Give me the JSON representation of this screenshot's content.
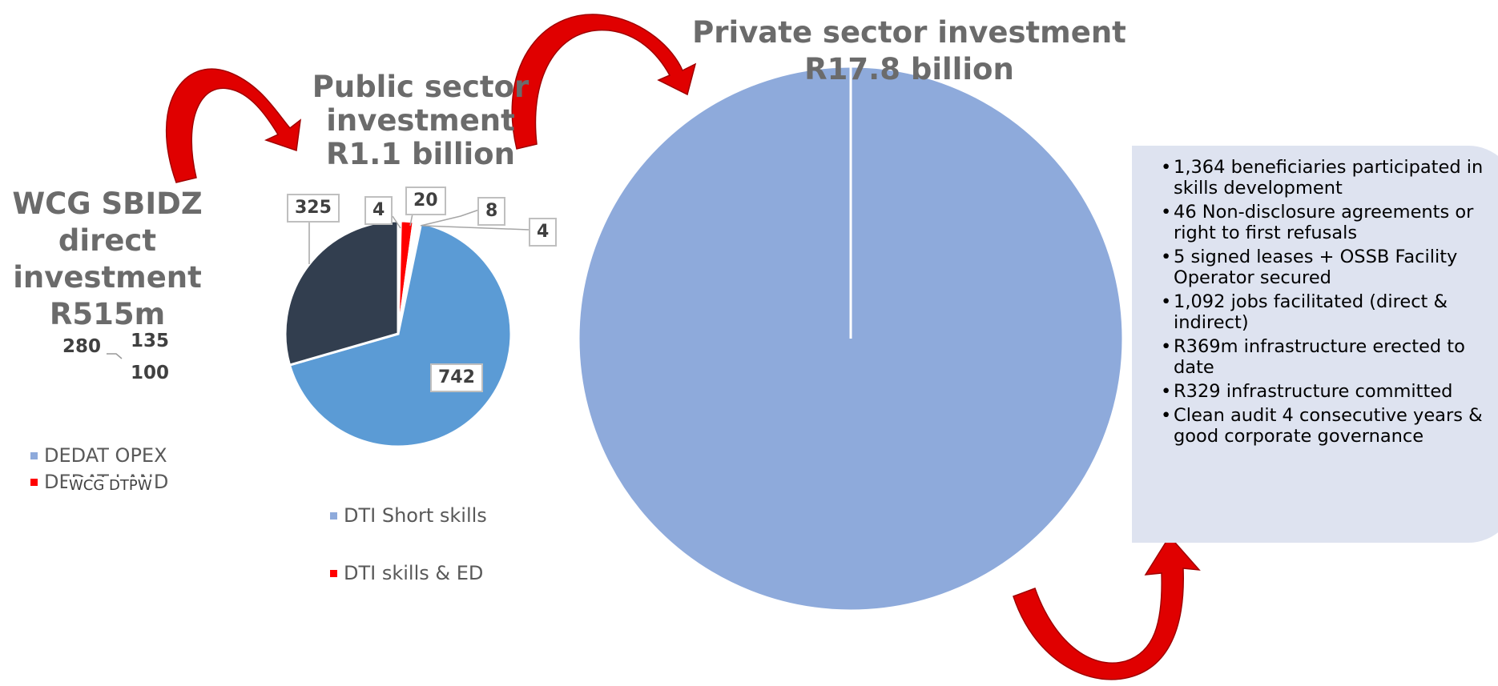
{
  "colors": {
    "light_blue": "#8eaadb",
    "mid_blue": "#5b9bd5",
    "dark_navy": "#323e4f",
    "red": "#ff0000",
    "box_bg": "#dee3f0",
    "arrow_red": "#e00000"
  },
  "wcg": {
    "title": "WCG SBIDZ direct investment R515m",
    "title_lines": [
      "WCG SBIDZ",
      "direct",
      "investment",
      "R515m"
    ],
    "value_labels": [
      "280",
      "135",
      "100"
    ],
    "legend": [
      {
        "label": "DEDAT OPEX",
        "color": "#8eaadb"
      },
      {
        "label": "DEDAT LAND",
        "color": "#ff0000"
      },
      {
        "label": "WCG DTPW",
        "color": ""
      }
    ]
  },
  "public": {
    "title_lines": [
      "Public sector",
      "investment",
      "R1.1 billion"
    ],
    "legend": [
      {
        "label": "DTI Short skills",
        "color": "#8eaadb"
      },
      {
        "label": "DTI skills & ED",
        "color": "#ff0000"
      }
    ]
  },
  "private": {
    "title_lines": [
      "Private sector investment",
      "R17.8 billion"
    ]
  },
  "info_box": {
    "bullets": [
      "1,364 beneficiaries participated in skills development",
      "46 Non-disclosure agreements or right to first refusals",
      "5 signed leases + OSSB Facility Operator secured",
      "1,092 jobs facilitated (direct & indirect)",
      "R369m infrastructure erected to date",
      "R329 infrastructure committed",
      "Clean audit 4 consecutive years & good corporate governance"
    ]
  },
  "chart_data": [
    {
      "type": "pie",
      "title": "WCG SBIDZ direct investment R515m",
      "categories": [
        "DEDAT OPEX",
        "DEDAT LAND",
        "WCG DTPW"
      ],
      "values": [
        280,
        135,
        100
      ]
    },
    {
      "type": "pie",
      "title": "Public sector investment R1.1 billion",
      "values": [
        742,
        325,
        4,
        20,
        8,
        4
      ],
      "slice_colors": [
        "#5b9bd5",
        "#323e4f",
        "#ffffff",
        "#ff0000",
        "#ffffff",
        "#ffffff"
      ],
      "value_labels": [
        "742",
        "325",
        "4",
        "20",
        "8",
        "4"
      ],
      "legend": [
        "DTI Short skills",
        "DTI skills & ED"
      ]
    },
    {
      "type": "pie",
      "title": "Private sector investment R17.8 billion",
      "values": [
        17.8
      ],
      "slice_colors": [
        "#8eaadb"
      ]
    }
  ]
}
